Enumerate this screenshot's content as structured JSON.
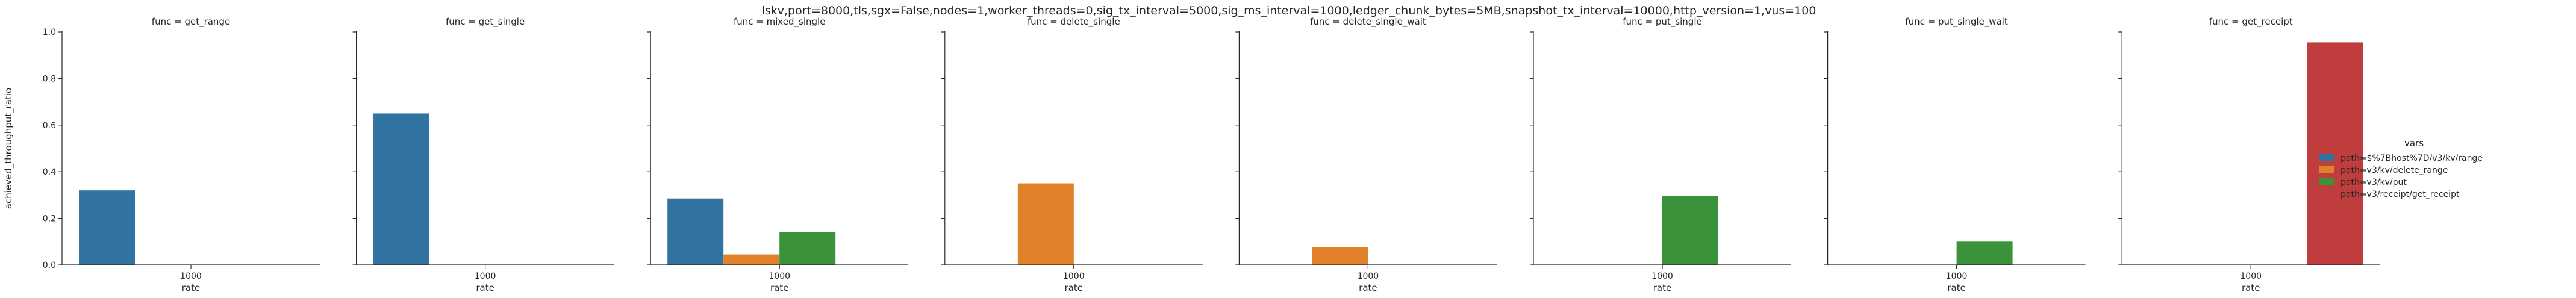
{
  "chart_data": {
    "type": "bar",
    "title": "lskv,port=8000,tls,sgx=False,nodes=1,worker_threads=0,sig_tx_interval=5000,sig_ms_interval=1000,ledger_chunk_bytes=5MB,snapshot_tx_interval=10000,http_version=1,vus=100",
    "ylabel": "achieved_throughput_ratio",
    "xlabel": "rate",
    "ylim": [
      0,
      1.0
    ],
    "yticks": [
      "0.0",
      "0.2",
      "0.4",
      "0.6",
      "0.8",
      "1.0"
    ],
    "yticks_values": [
      0,
      0.2,
      0.4,
      0.6,
      0.8,
      1.0
    ],
    "category": "1000",
    "grid": false,
    "legend_placement": "right",
    "legend": {
      "title": "vars",
      "entries": [
        {
          "label": "path=$%7Bhost%7D/v3/kv/range",
          "color": "#3274a1"
        },
        {
          "label": "path=v3/kv/delete_range",
          "color": "#e1812c"
        },
        {
          "label": "path=v3/kv/put",
          "color": "#3a923a"
        },
        {
          "label": "path=v3/receipt/get_receipt",
          "color": "#c03d3e"
        }
      ]
    },
    "panels": [
      {
        "title": "func = get_range",
        "values": [
          0.32,
          null,
          null,
          null
        ]
      },
      {
        "title": "func = get_single",
        "values": [
          0.65,
          null,
          null,
          null
        ]
      },
      {
        "title": "func = mixed_single",
        "values": [
          0.285,
          0.045,
          0.14,
          null
        ]
      },
      {
        "title": "func = delete_single",
        "values": [
          null,
          0.35,
          null,
          null
        ]
      },
      {
        "title": "func = delete_single_wait",
        "values": [
          null,
          0.075,
          null,
          null
        ]
      },
      {
        "title": "func = put_single",
        "values": [
          null,
          null,
          0.295,
          null
        ]
      },
      {
        "title": "func = put_single_wait",
        "values": [
          null,
          null,
          0.1,
          null
        ]
      },
      {
        "title": "func = get_receipt",
        "values": [
          null,
          null,
          null,
          0.955
        ]
      }
    ]
  }
}
